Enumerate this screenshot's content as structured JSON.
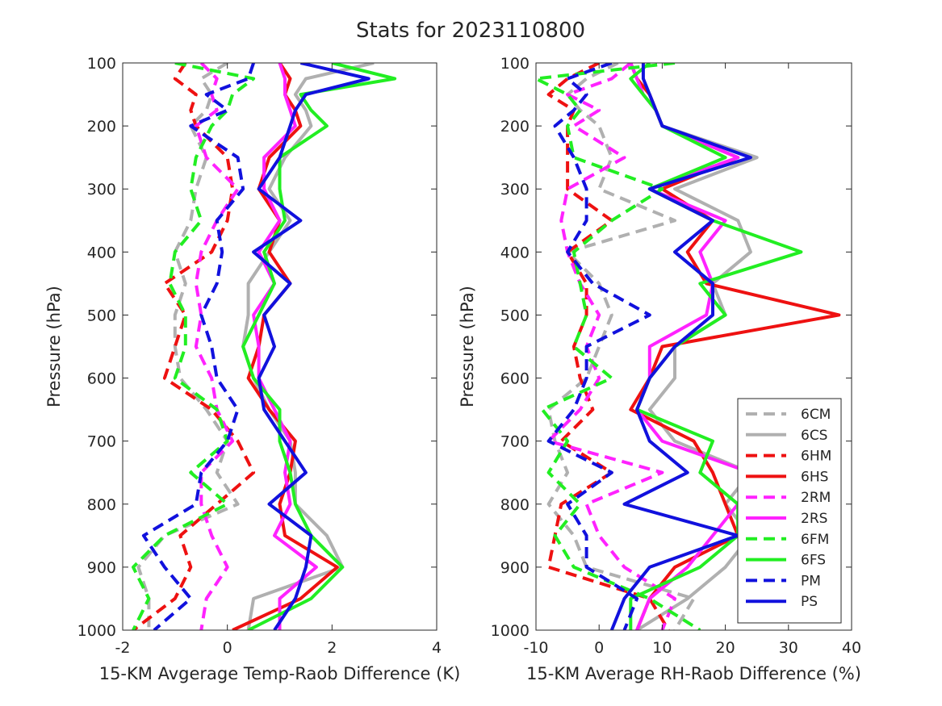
{
  "figure_title": "Stats for 2023110800",
  "series_styles": [
    {
      "name": "6CM",
      "color": "#b0b0b0",
      "dash": true
    },
    {
      "name": "6CS",
      "color": "#b0b0b0",
      "dash": false
    },
    {
      "name": "6HM",
      "color": "#ee1111",
      "dash": true
    },
    {
      "name": "6HS",
      "color": "#ee1111",
      "dash": false
    },
    {
      "name": "2RM",
      "color": "#ff22ff",
      "dash": true
    },
    {
      "name": "2RS",
      "color": "#ff22ff",
      "dash": false
    },
    {
      "name": "6FM",
      "color": "#22ee22",
      "dash": true
    },
    {
      "name": "6FS",
      "color": "#22ee22",
      "dash": false
    },
    {
      "name": "PM",
      "color": "#1111dd",
      "dash": true
    },
    {
      "name": "PS",
      "color": "#1111dd",
      "dash": false
    }
  ],
  "legend_position": "bottom-right of right panel",
  "chart_data": [
    {
      "type": "line",
      "xlabel": "15-KM Avgerage Temp-Raob Difference (K)",
      "ylabel": "Pressure (hPa)",
      "xlim": [
        -2,
        4
      ],
      "ylim": [
        100,
        1000
      ],
      "y_reversed": true,
      "xticks": [
        "-2",
        "0",
        "2",
        "4"
      ],
      "yticks": [
        "100",
        "200",
        "300",
        "400",
        "500",
        "600",
        "700",
        "800",
        "900",
        "1000"
      ],
      "pressure": [
        100,
        125,
        150,
        175,
        200,
        250,
        300,
        350,
        400,
        450,
        500,
        550,
        600,
        650,
        700,
        750,
        800,
        850,
        900,
        950,
        1000
      ],
      "series": [
        {
          "name": "6CM",
          "x": [
            0.0,
            -0.5,
            -0.3,
            -0.4,
            -0.7,
            -0.4,
            -0.6,
            -0.7,
            -1.0,
            -0.8,
            -1.0,
            -1.0,
            -0.9,
            -0.4,
            0.0,
            -0.2,
            0.2,
            -1.2,
            -1.7,
            -1.5,
            -1.5
          ]
        },
        {
          "name": "6CS",
          "x": [
            2.8,
            1.5,
            1.3,
            1.5,
            1.6,
            1.1,
            0.8,
            1.2,
            0.8,
            0.4,
            0.4,
            0.3,
            0.5,
            0.8,
            1.2,
            1.3,
            1.3,
            1.9,
            2.2,
            0.5,
            0.4
          ]
        },
        {
          "name": "6HM",
          "x": [
            -0.8,
            -1.0,
            -0.6,
            -0.7,
            -0.6,
            0.0,
            0.1,
            0.0,
            -0.3,
            -1.2,
            -0.8,
            -1.0,
            -1.2,
            -0.3,
            0.2,
            0.5,
            -0.2,
            -0.9,
            -0.7,
            -1.0,
            -1.8
          ]
        },
        {
          "name": "6HS",
          "x": [
            1.0,
            1.2,
            1.1,
            1.3,
            1.4,
            0.8,
            0.6,
            1.0,
            0.8,
            1.2,
            0.7,
            0.6,
            0.4,
            0.8,
            1.3,
            1.2,
            1.0,
            1.1,
            2.1,
            1.4,
            0.1
          ]
        },
        {
          "name": "2RM",
          "x": [
            -0.5,
            -0.2,
            -0.3,
            -0.2,
            -0.6,
            -0.4,
            0.2,
            -0.2,
            -0.5,
            -0.6,
            -0.5,
            -0.6,
            -0.3,
            -0.2,
            0.1,
            -0.5,
            -0.5,
            -0.3,
            0.0,
            -0.4,
            -0.5
          ]
        },
        {
          "name": "2RS",
          "x": [
            1.0,
            1.1,
            1.1,
            1.2,
            1.3,
            0.7,
            0.7,
            1.0,
            0.6,
            0.9,
            0.5,
            0.6,
            0.6,
            0.9,
            1.2,
            1.1,
            1.2,
            0.9,
            1.7,
            1.0,
            1.0
          ]
        },
        {
          "name": "6FM",
          "x": [
            -1.0,
            0.5,
            0.1,
            0.0,
            -0.3,
            -0.6,
            -0.7,
            -0.5,
            -1.0,
            -1.1,
            -0.8,
            -0.8,
            -1.0,
            -0.2,
            0.0,
            -0.7,
            0.0,
            -1.2,
            -1.8,
            -1.5,
            -1.8
          ]
        },
        {
          "name": "6FS",
          "x": [
            2.0,
            3.2,
            1.4,
            1.6,
            1.9,
            1.0,
            1.0,
            1.1,
            0.7,
            0.9,
            0.6,
            0.3,
            0.5,
            1.0,
            1.0,
            1.2,
            1.3,
            1.6,
            2.2,
            1.6,
            0.4
          ]
        },
        {
          "name": "PM",
          "x": [
            0.5,
            0.4,
            -0.4,
            0.0,
            -0.7,
            0.2,
            0.3,
            -0.2,
            -0.1,
            -0.2,
            -0.5,
            -0.3,
            -0.2,
            0.2,
            0.0,
            -0.5,
            -0.6,
            -1.6,
            -1.2,
            -0.7,
            -1.4
          ]
        },
        {
          "name": "PS",
          "x": [
            1.4,
            2.7,
            1.5,
            1.3,
            1.2,
            1.0,
            0.6,
            1.4,
            0.5,
            1.2,
            0.7,
            0.9,
            0.6,
            0.7,
            1.1,
            1.5,
            0.8,
            1.6,
            1.5,
            1.3,
            0.9
          ]
        }
      ]
    },
    {
      "type": "line",
      "xlabel": "15-KM Average RH-Raob Difference (%)",
      "ylabel": "Pressure (hPa)",
      "xlim": [
        -10,
        40
      ],
      "ylim": [
        100,
        1000
      ],
      "y_reversed": true,
      "xticks": [
        "-10",
        "0",
        "10",
        "20",
        "30",
        "40"
      ],
      "yticks": [
        "100",
        "200",
        "300",
        "400",
        "500",
        "600",
        "700",
        "800",
        "900",
        "1000"
      ],
      "pressure": [
        100,
        125,
        150,
        175,
        200,
        250,
        300,
        350,
        400,
        450,
        500,
        550,
        600,
        650,
        700,
        750,
        800,
        850,
        900,
        950,
        1000
      ],
      "series": [
        {
          "name": "6CM",
          "x": [
            3,
            -2,
            -5,
            -3,
            0,
            2,
            0,
            12,
            -5,
            0,
            2,
            0,
            -2,
            -8,
            -7,
            -5,
            -8,
            -4,
            -2,
            15,
            12
          ]
        },
        {
          "name": "6CS",
          "x": [
            5,
            6,
            8,
            9,
            10,
            25,
            12,
            22,
            24,
            18,
            20,
            12,
            12,
            8,
            12,
            24,
            20,
            24,
            20,
            14,
            6
          ]
        },
        {
          "name": "6HM",
          "x": [
            0,
            -5,
            -8,
            -4,
            -5,
            -5,
            -5,
            2,
            -5,
            -2,
            -2,
            -4,
            -3,
            -1,
            -6,
            2,
            -6,
            -7,
            -8,
            8,
            11
          ]
        },
        {
          "name": "6HS",
          "x": [
            5,
            6,
            8,
            9,
            10,
            22,
            10,
            18,
            14,
            17,
            38,
            10,
            8,
            5,
            15,
            18,
            20,
            22,
            12,
            8,
            6
          ]
        },
        {
          "name": "2RM",
          "x": [
            5,
            2,
            -5,
            0,
            -4,
            4,
            -5,
            -6,
            -5,
            -3,
            0,
            -2,
            0,
            -3,
            -8,
            10,
            -2,
            0,
            4,
            12,
            10
          ]
        },
        {
          "name": "2RS",
          "x": [
            5,
            6,
            7,
            9,
            10,
            22,
            8,
            20,
            16,
            18,
            17,
            8,
            8,
            6,
            10,
            24,
            22,
            18,
            14,
            8,
            6
          ]
        },
        {
          "name": "6FM",
          "x": [
            12,
            -10,
            -5,
            -3,
            -5,
            -4,
            10,
            2,
            -4,
            -3,
            -2,
            -4,
            2,
            -9,
            -5,
            -8,
            -3,
            -7,
            -4,
            8,
            16
          ]
        },
        {
          "name": "6FS",
          "x": [
            8,
            5,
            7,
            9,
            10,
            20,
            8,
            18,
            32,
            16,
            20,
            12,
            8,
            6,
            18,
            16,
            22,
            22,
            16,
            5,
            5
          ]
        },
        {
          "name": "PM",
          "x": [
            2,
            -5,
            -2,
            -4,
            -7,
            -4,
            -2,
            -2,
            -5,
            -1,
            8,
            -2,
            -2,
            -4,
            -8,
            2,
            -5,
            -2,
            -2,
            6,
            4
          ]
        },
        {
          "name": "PS",
          "x": [
            7,
            7,
            8,
            9,
            10,
            24,
            8,
            18,
            12,
            18,
            18,
            12,
            8,
            6,
            8,
            14,
            4,
            22,
            8,
            4,
            2
          ]
        }
      ]
    }
  ]
}
